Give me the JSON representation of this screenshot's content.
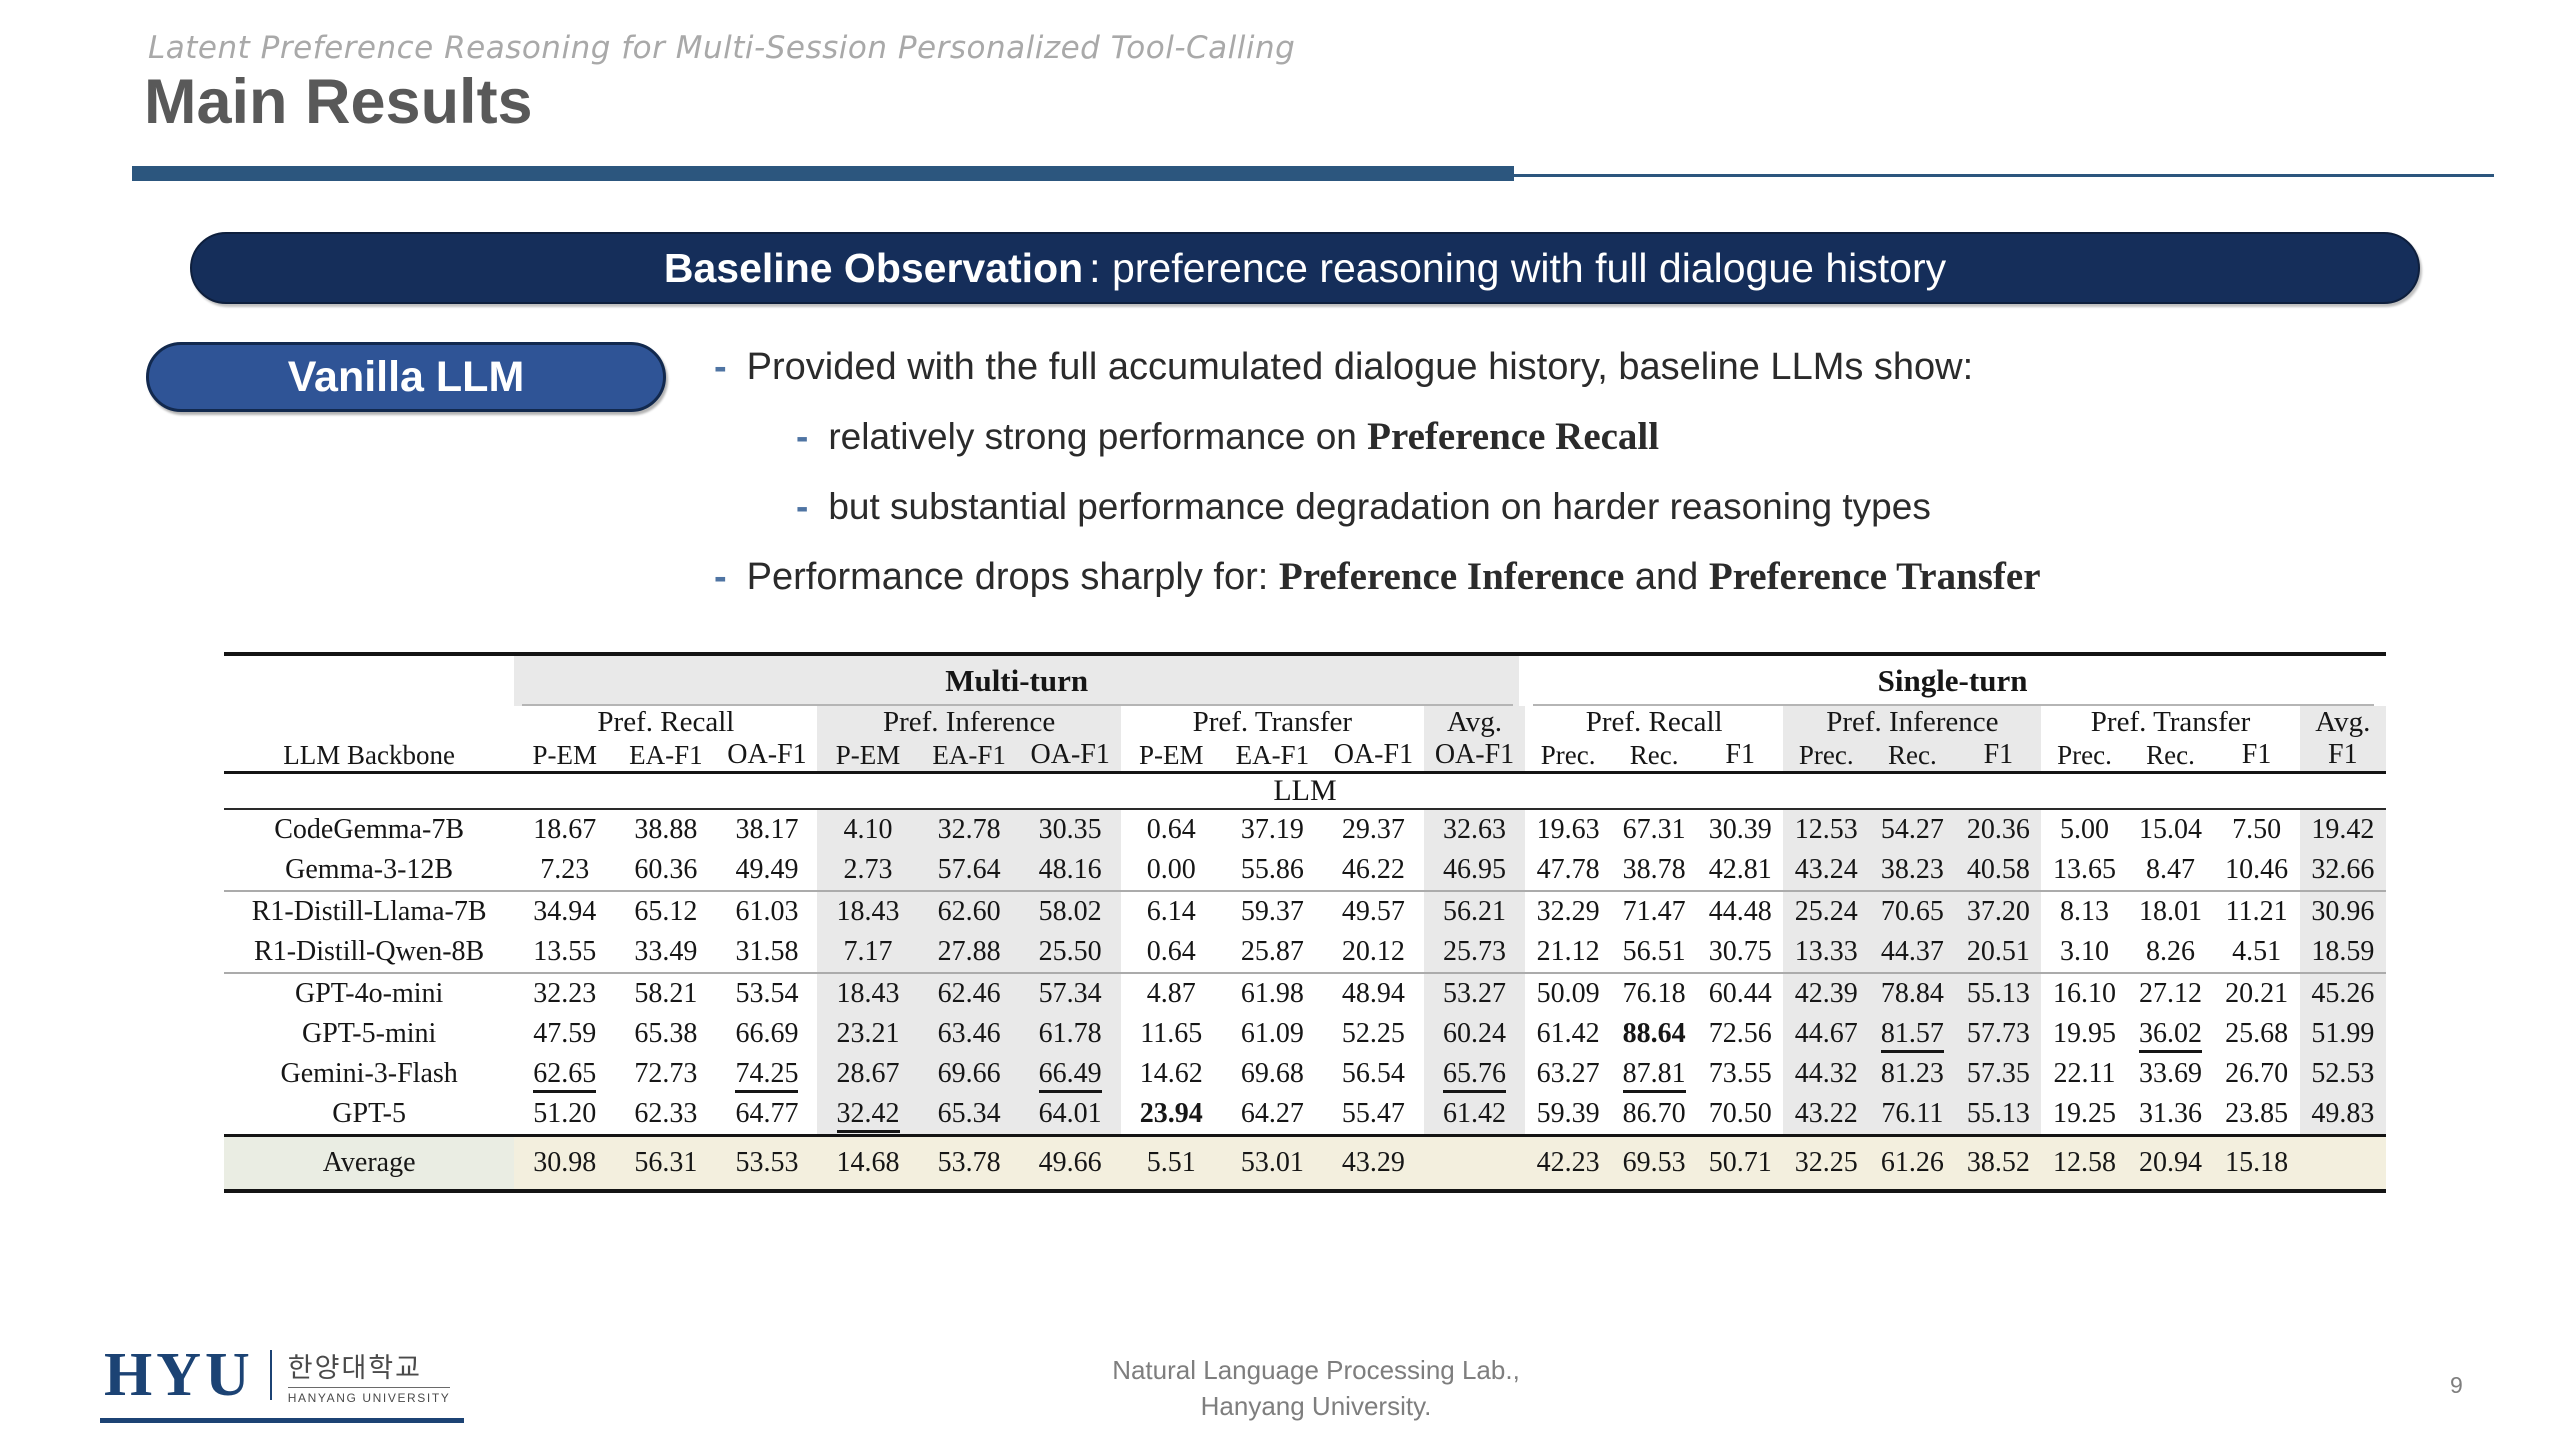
{
  "slide": {
    "kicker": "Latent Preference Reasoning for Multi-Session Personalized Tool-Calling",
    "title": "Main Results",
    "banner": {
      "bold": "Baseline Observation",
      "rest": ": preference reasoning with full dialogue history"
    },
    "vanilla_label": "Vanilla LLM",
    "bullet_marker": "-",
    "bullets": [
      {
        "level": 1,
        "segments": [
          {
            "t": "Provided with the full accumulated dialogue history, baseline LLMs show:",
            "em": false
          }
        ]
      },
      {
        "level": 2,
        "segments": [
          {
            "t": "relatively strong performance on ",
            "em": false
          },
          {
            "t": "Preference Recall",
            "em": true
          }
        ]
      },
      {
        "level": 2,
        "segments": [
          {
            "t": "but substantial performance degradation on harder reasoning types",
            "em": false
          }
        ]
      },
      {
        "level": 1,
        "segments": [
          {
            "t": "Performance drops sharply for: ",
            "em": false
          },
          {
            "t": "Preference Inference",
            "em": true
          },
          {
            "t": " and ",
            "em": false
          },
          {
            "t": "Preference Transfer",
            "em": true
          }
        ]
      }
    ]
  },
  "colors": {
    "banner_bg": "#152e5a",
    "pill_bg": "#2f5496",
    "title_rule": "#2c567e",
    "column_shade": "#e9e9e9",
    "average_row_bg": "#f3efde",
    "logo_navy": "#1c4374"
  },
  "table": {
    "row_header_label": "LLM Backbone",
    "section_label": "LLM",
    "turns": [
      {
        "label": "Multi-turn",
        "span": 10,
        "shaded_band": true
      },
      {
        "label": "Single-turn",
        "span": 10,
        "shaded_band": false
      }
    ],
    "subgroups": [
      {
        "label": "Pref. Recall",
        "cols": [
          "P-EM",
          "EA-F1",
          "OA-F1"
        ],
        "shaded": false
      },
      {
        "label": "Pref. Inference",
        "cols": [
          "P-EM",
          "EA-F1",
          "OA-F1"
        ],
        "shaded": true
      },
      {
        "label": "Pref. Transfer",
        "cols": [
          "P-EM",
          "EA-F1",
          "OA-F1"
        ],
        "shaded": false
      },
      {
        "label": "Avg.",
        "cols": [
          "OA-F1"
        ],
        "shaded": true
      },
      {
        "label": "Pref. Recall",
        "cols": [
          "Prec.",
          "Rec.",
          "F1"
        ],
        "shaded": false
      },
      {
        "label": "Pref. Inference",
        "cols": [
          "Prec.",
          "Rec.",
          "F1"
        ],
        "shaded": true
      },
      {
        "label": "Pref. Transfer",
        "cols": [
          "Prec.",
          "Rec.",
          "F1"
        ],
        "shaded": false
      },
      {
        "label": "Avg.",
        "cols": [
          "F1"
        ],
        "shaded": true
      }
    ],
    "bold_col_labels": [
      "OA-F1",
      "F1"
    ],
    "groups": [
      [
        {
          "name": "CodeGemma-7B",
          "values": [
            "18.67",
            "38.88",
            "38.17",
            "4.10",
            "32.78",
            "30.35",
            "0.64",
            "37.19",
            "29.37",
            "32.63",
            "19.63",
            "67.31",
            "30.39",
            "12.53",
            "54.27",
            "20.36",
            "5.00",
            "15.04",
            "7.50",
            "19.42"
          ]
        },
        {
          "name": "Gemma-3-12B",
          "values": [
            "7.23",
            "60.36",
            "49.49",
            "2.73",
            "57.64",
            "48.16",
            "0.00",
            "55.86",
            "46.22",
            "46.95",
            "47.78",
            "38.78",
            "42.81",
            "43.24",
            "38.23",
            "40.58",
            "13.65",
            "8.47",
            "10.46",
            "32.66"
          ]
        }
      ],
      [
        {
          "name": "R1-Distill-Llama-7B",
          "values": [
            "34.94",
            "65.12",
            "61.03",
            "18.43",
            "62.60",
            "58.02",
            "6.14",
            "59.37",
            "49.57",
            "56.21",
            "32.29",
            "71.47",
            "44.48",
            "25.24",
            "70.65",
            "37.20",
            "8.13",
            "18.01",
            "11.21",
            "30.96"
          ]
        },
        {
          "name": "R1-Distill-Qwen-8B",
          "values": [
            "13.55",
            "33.49",
            "31.58",
            "7.17",
            "27.88",
            "25.50",
            "0.64",
            "25.87",
            "20.12",
            "25.73",
            "21.12",
            "56.51",
            "30.75",
            "13.33",
            "44.37",
            "20.51",
            "3.10",
            "8.26",
            "4.51",
            "18.59"
          ]
        }
      ],
      [
        {
          "name": "GPT-4o-mini",
          "values": [
            "32.23",
            "58.21",
            "53.54",
            "18.43",
            "62.46",
            "57.34",
            "4.87",
            "61.98",
            "48.94",
            "53.27",
            "50.09",
            "76.18",
            "60.44",
            "42.39",
            "78.84",
            "55.13",
            "16.10",
            "27.12",
            "20.21",
            "45.26"
          ]
        },
        {
          "name": "GPT-5-mini",
          "values": [
            "47.59",
            "65.38",
            "66.69",
            "23.21",
            "63.46",
            "61.78",
            "11.65",
            "61.09",
            "52.25",
            "60.24",
            "61.42",
            "88.64|b",
            "72.56",
            "44.67",
            "81.57|u",
            "57.73",
            "19.95",
            "36.02|u",
            "25.68",
            "51.99"
          ]
        },
        {
          "name": "Gemini-3-Flash",
          "values": [
            "62.65|u",
            "72.73",
            "74.25|u",
            "28.67",
            "69.66",
            "66.49|u",
            "14.62",
            "69.68",
            "56.54",
            "65.76|u",
            "63.27",
            "87.81|u",
            "73.55",
            "44.32",
            "81.23",
            "57.35",
            "22.11",
            "33.69",
            "26.70",
            "52.53"
          ]
        },
        {
          "name": "GPT-5",
          "values": [
            "51.20",
            "62.33",
            "64.77",
            "32.42|u",
            "65.34",
            "64.01",
            "23.94|b",
            "64.27",
            "55.47",
            "61.42",
            "59.39",
            "86.70",
            "70.50",
            "43.22",
            "76.11",
            "55.13",
            "19.25",
            "31.36",
            "23.85",
            "49.83"
          ]
        }
      ]
    ],
    "average": {
      "name": "Average",
      "values": [
        "30.98",
        "56.31",
        "53.53",
        "14.68",
        "53.78",
        "49.66",
        "5.51",
        "53.01",
        "43.29",
        "",
        "42.23",
        "69.53",
        "50.71",
        "32.25",
        "61.26",
        "38.52",
        "12.58",
        "20.94",
        "15.18",
        ""
      ]
    }
  },
  "footer": {
    "logo_text": "HYU",
    "logo_korean": "한양대학교",
    "logo_english": "HANYANG UNIVERSITY",
    "lab_line1": "Natural Language Processing Lab.,",
    "lab_line2": "Hanyang University.",
    "page_number": "9"
  }
}
